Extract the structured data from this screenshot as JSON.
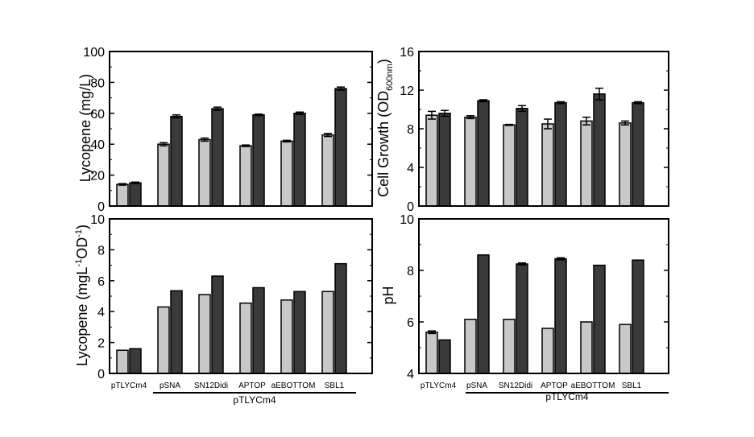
{
  "colors": {
    "light_bar": "#c8c8c8",
    "dark_bar": "#3a3a3a",
    "axis": "#000000"
  },
  "categories": [
    "pTLYCm4",
    "pSNA",
    "SN12Didi",
    "APTOP",
    "aEBOTTOM",
    "SBL1"
  ],
  "group_label": "pTLYCm4",
  "chart_data": [
    {
      "type": "bar",
      "panel": "top-left",
      "ylabel": "Lycopene (mg/L)",
      "ylim": [
        0,
        100
      ],
      "yticks": [
        0,
        20,
        40,
        60,
        80,
        100
      ],
      "series": [
        {
          "values": [
            14,
            40,
            43,
            39,
            42,
            46
          ],
          "errors": [
            0.5,
            1,
            1,
            0.5,
            0.5,
            1
          ]
        },
        {
          "values": [
            15,
            58,
            63,
            59,
            60,
            76
          ],
          "errors": [
            0.5,
            1,
            1,
            0.5,
            0.8,
            1
          ]
        }
      ]
    },
    {
      "type": "bar",
      "panel": "top-right",
      "ylabel": "Cell Growth (OD",
      "ylabel_sub": "600nm",
      "ylabel_end": ")",
      "ylim": [
        0,
        16
      ],
      "yticks": [
        0,
        4,
        8,
        12,
        16
      ],
      "series": [
        {
          "values": [
            9.4,
            9.2,
            8.4,
            8.5,
            8.8,
            8.6
          ],
          "errors": [
            0.4,
            0.15,
            0.05,
            0.5,
            0.4,
            0.2
          ]
        },
        {
          "values": [
            9.6,
            10.9,
            10.1,
            10.7,
            11.6,
            10.7
          ],
          "errors": [
            0.3,
            0.1,
            0.3,
            0.1,
            0.6,
            0.1
          ]
        }
      ]
    },
    {
      "type": "bar",
      "panel": "bottom-left",
      "ylabel": "Lycopene (mgL",
      "ylabel_sup1": "-1",
      "ylabel_mid": "OD",
      "ylabel_sup2": "-1",
      "ylabel_end": ")",
      "ylim": [
        0,
        10
      ],
      "yticks": [
        0,
        2,
        4,
        6,
        8,
        10
      ],
      "series": [
        {
          "values": [
            1.5,
            4.3,
            5.1,
            4.55,
            4.75,
            5.3
          ],
          "errors": [
            0,
            0,
            0,
            0,
            0,
            0
          ]
        },
        {
          "values": [
            1.6,
            5.35,
            6.3,
            5.55,
            5.3,
            7.1
          ],
          "errors": [
            0,
            0,
            0,
            0,
            0,
            0
          ]
        }
      ]
    },
    {
      "type": "bar",
      "panel": "bottom-right",
      "ylabel": "pH",
      "ylim": [
        4,
        10
      ],
      "yticks": [
        4,
        6,
        8,
        10
      ],
      "series": [
        {
          "values": [
            5.6,
            6.1,
            6.1,
            5.75,
            6.0,
            5.9
          ],
          "errors": [
            0.05,
            0,
            0,
            0,
            0,
            0
          ]
        },
        {
          "values": [
            5.3,
            8.6,
            8.25,
            8.45,
            8.2,
            8.4
          ],
          "errors": [
            0,
            0,
            0.04,
            0.04,
            0,
            0
          ]
        }
      ]
    }
  ]
}
